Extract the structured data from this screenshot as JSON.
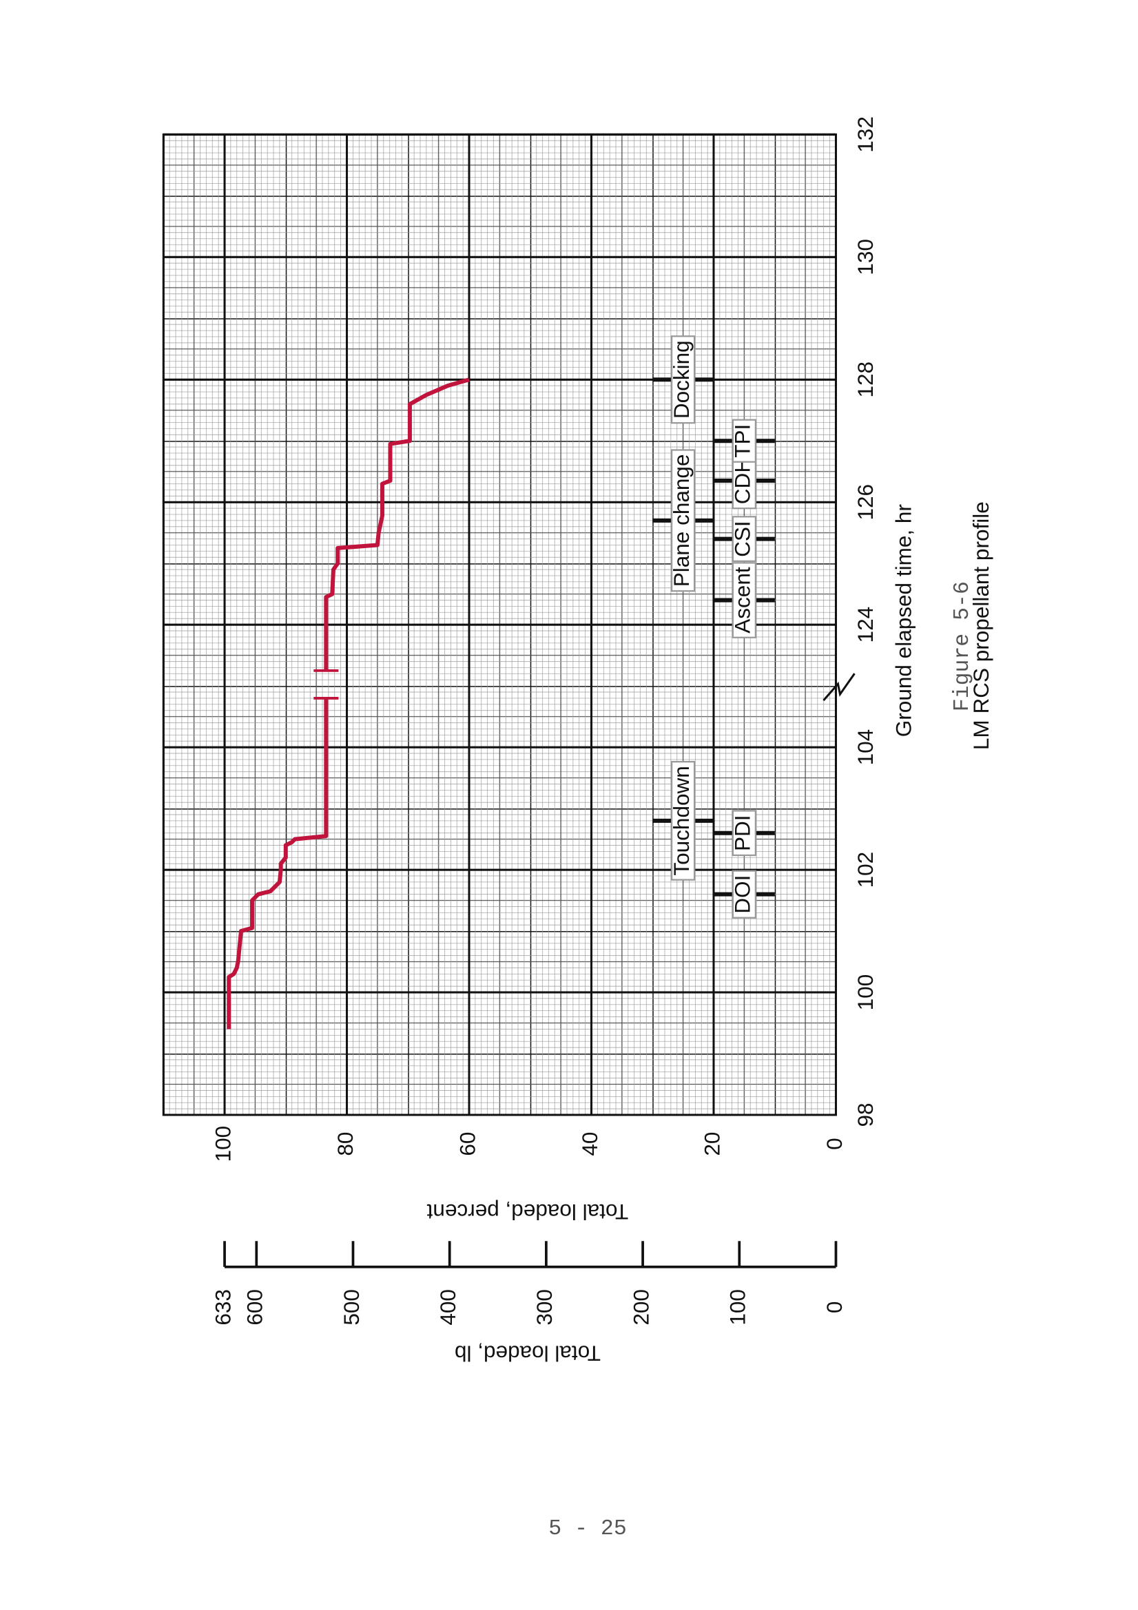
{
  "page_number": "5 - 25",
  "chart_data": {
    "type": "line",
    "figure_label": "Figure 5-6",
    "title": "LM RCS propellant profile",
    "xlabel": "Ground elapsed time, hr",
    "ylabel": "Total loaded, percent",
    "y2label": "Total loaded, lb",
    "xlim": [
      98,
      132
    ],
    "xbreak": [
      105,
      123
    ],
    "xticks": [
      98,
      100,
      102,
      104,
      124,
      126,
      128,
      130,
      132
    ],
    "ylim": [
      0,
      110
    ],
    "yticks": [
      0,
      20,
      40,
      60,
      80,
      100
    ],
    "y2lim": [
      0,
      633
    ],
    "y2ticks": [
      0,
      100,
      200,
      300,
      400,
      500,
      600,
      633
    ],
    "grid": true,
    "color": "#c0143c",
    "x": [
      99.4,
      100.25,
      100.3,
      100.4,
      100.5,
      100.8,
      101.0,
      101.05,
      101.5,
      101.6,
      101.65,
      101.7,
      101.8,
      102.0,
      102.1,
      102.2,
      102.4,
      102.45,
      102.5,
      102.55,
      104.8,
      null,
      123.25,
      124.45,
      124.5,
      124.9,
      125.0,
      125.25,
      125.3,
      125.5,
      125.78,
      126.3,
      126.35,
      126.95,
      127.0,
      127.6,
      127.75,
      127.9,
      128.0
    ],
    "values": [
      99.3,
      99.3,
      98.5,
      98.0,
      97.8,
      97.5,
      97.3,
      95.5,
      95.5,
      94.5,
      92.5,
      92.0,
      91.0,
      90.8,
      90.8,
      90.0,
      90.0,
      89.0,
      88.5,
      83.4,
      83.4,
      null,
      83.4,
      83.4,
      82.4,
      82.2,
      81.5,
      81.5,
      75.0,
      74.8,
      74.2,
      74.2,
      72.9,
      72.9,
      69.7,
      69.7,
      67.0,
      63.5,
      60.0
    ],
    "event_rows": [
      {
        "ylim": [
          10,
          20
        ],
        "labels": [
          "DOI",
          "PDI",
          "Ascent",
          "CSI",
          "CDH",
          "TPI"
        ],
        "x": [
          101.6,
          102.6,
          124.4,
          125.4,
          126.35,
          127.0
        ]
      },
      {
        "ylim": [
          20,
          30
        ],
        "labels": [
          "Touchdown",
          "Plane change",
          "Docking"
        ],
        "x": [
          102.8,
          125.7,
          128.0
        ]
      }
    ]
  }
}
